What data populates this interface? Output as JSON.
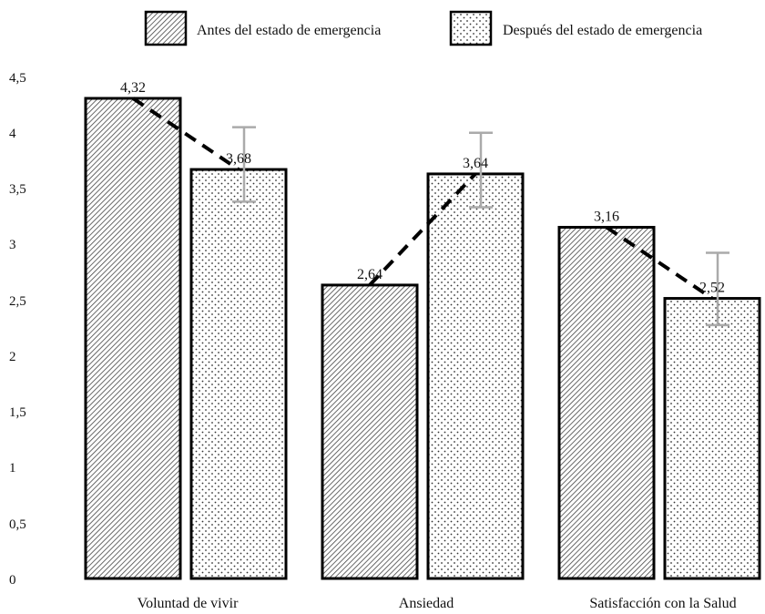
{
  "chart_data": {
    "type": "bar",
    "categories": [
      "Voluntad de vivir",
      "Ansiedad",
      "Satisfacción con la Salud"
    ],
    "series": [
      {
        "name": "Antes del estado de emergencia",
        "values": [
          4.32,
          2.64,
          3.16
        ],
        "labels": [
          "4,32",
          "2,64",
          "3,16"
        ],
        "pattern": "diagonal-hatch"
      },
      {
        "name": "Después del estado de emergencia",
        "values": [
          3.68,
          3.64,
          2.52
        ],
        "labels": [
          "3,68",
          "3,64",
          "2,52"
        ],
        "pattern": "dots",
        "error_high": [
          4.06,
          4.01,
          2.93
        ],
        "error_low": [
          3.39,
          3.34,
          2.28
        ]
      }
    ],
    "ylim": [
      0,
      4.5
    ],
    "yticks": [
      0,
      0.5,
      1,
      1.5,
      2,
      2.5,
      3,
      3.5,
      4,
      4.5
    ],
    "ytick_labels": [
      "0",
      "0,5",
      "1",
      "1,5",
      "2",
      "2,5",
      "3",
      "3,5",
      "4",
      "4,5"
    ],
    "connector": "dashed line between paired bars",
    "grid": false,
    "legend_position": "top",
    "colors": {
      "bar_fill": "#ffffff",
      "pattern": "#333333",
      "outline": "#000000",
      "error_bar": "#aaaaaa"
    }
  }
}
